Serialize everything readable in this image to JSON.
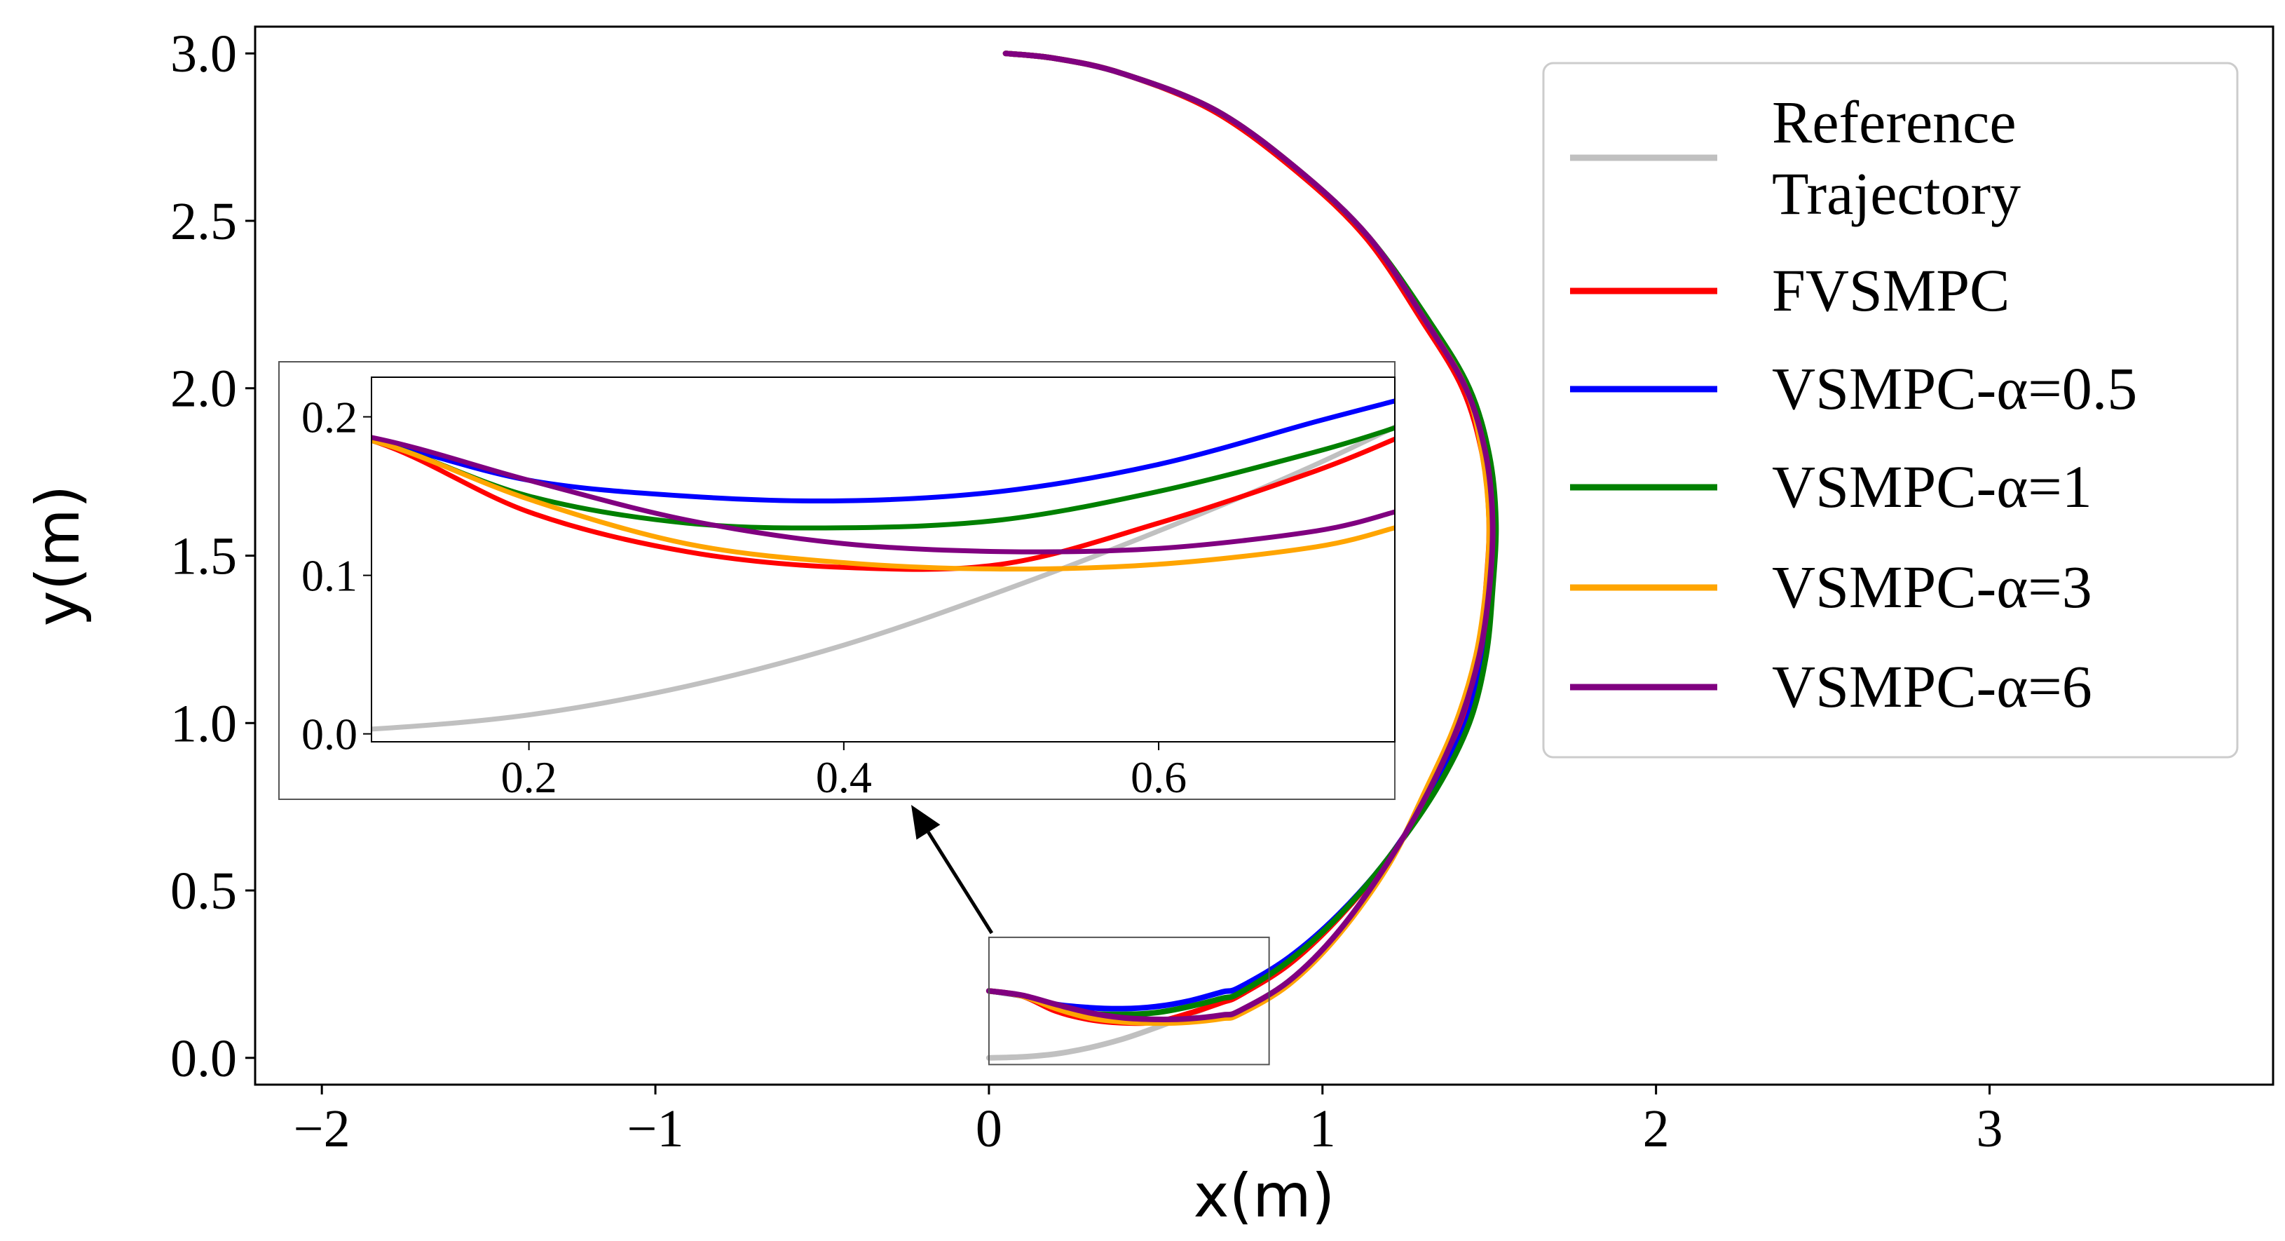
{
  "chart_data": {
    "type": "line",
    "title": "",
    "xlabel": "x(m)",
    "ylabel": "y(m)",
    "xlim": [
      -2.2,
      3.85
    ],
    "ylim": [
      -0.08,
      3.08
    ],
    "xticks": [
      -2,
      -1,
      0,
      1,
      2,
      3
    ],
    "xtick_labels": [
      "−2",
      "−1",
      "0",
      "1",
      "2",
      "3"
    ],
    "yticks": [
      0.0,
      0.5,
      1.0,
      1.5,
      2.0,
      2.5,
      3.0
    ],
    "ytick_labels": [
      "0.0",
      "0.5",
      "1.0",
      "1.5",
      "2.0",
      "2.5",
      "3.0"
    ],
    "grid": false,
    "legend_position": "top-right",
    "series": [
      {
        "name": "Reference\nTrajectory",
        "color": "#c0c0c0",
        "x": [
          0.0,
          0.1,
          0.2,
          0.3,
          0.4,
          0.5,
          0.6,
          0.7,
          0.8
        ],
        "y": [
          0.0,
          0.003,
          0.012,
          0.03,
          0.056,
          0.09,
          0.128,
          0.17,
          0.218
        ]
      },
      {
        "name": "FVSMPC",
        "color": "#ff0000",
        "x": [
          0.0,
          0.1,
          0.2,
          0.3,
          0.4,
          0.5,
          0.6,
          0.7,
          0.75,
          0.9,
          1.05,
          1.2,
          1.33,
          1.42,
          1.47,
          1.49,
          1.5,
          1.48,
          1.42,
          1.3,
          1.13,
          0.92,
          0.67,
          0.4,
          0.2,
          0.05
        ],
        "y": [
          0.2,
          0.185,
          0.14,
          0.115,
          0.105,
          0.107,
          0.133,
          0.166,
          0.186,
          0.28,
          0.42,
          0.6,
          0.8,
          1.0,
          1.2,
          1.4,
          1.6,
          1.8,
          2.0,
          2.2,
          2.45,
          2.65,
          2.83,
          2.94,
          2.985,
          3.0
        ]
      },
      {
        "name": "VSMPC-α=0.5",
        "color": "#0000ff",
        "x": [
          0.0,
          0.1,
          0.2,
          0.3,
          0.4,
          0.5,
          0.6,
          0.7,
          0.75,
          0.9,
          1.05,
          1.2,
          1.33,
          1.43,
          1.48,
          1.5,
          1.51,
          1.49,
          1.43,
          1.31,
          1.14,
          0.93,
          0.68,
          0.4,
          0.2,
          0.05
        ],
        "y": [
          0.2,
          0.185,
          0.16,
          0.15,
          0.147,
          0.153,
          0.17,
          0.197,
          0.21,
          0.3,
          0.43,
          0.6,
          0.8,
          1.0,
          1.2,
          1.4,
          1.6,
          1.8,
          2.0,
          2.2,
          2.45,
          2.65,
          2.83,
          2.94,
          2.985,
          3.0
        ]
      },
      {
        "name": "VSMPC-α=1",
        "color": "#008000",
        "x": [
          0.0,
          0.1,
          0.2,
          0.3,
          0.4,
          0.5,
          0.6,
          0.7,
          0.75,
          0.9,
          1.05,
          1.2,
          1.34,
          1.44,
          1.49,
          1.51,
          1.52,
          1.5,
          1.44,
          1.32,
          1.14,
          0.93,
          0.68,
          0.4,
          0.2,
          0.05
        ],
        "y": [
          0.2,
          0.185,
          0.15,
          0.133,
          0.13,
          0.135,
          0.153,
          0.178,
          0.193,
          0.29,
          0.425,
          0.6,
          0.8,
          1.0,
          1.2,
          1.4,
          1.6,
          1.8,
          2.0,
          2.2,
          2.45,
          2.65,
          2.83,
          2.94,
          2.985,
          3.0
        ]
      },
      {
        "name": "VSMPC-α=3",
        "color": "#ffa500",
        "x": [
          0.0,
          0.1,
          0.2,
          0.3,
          0.4,
          0.5,
          0.6,
          0.7,
          0.75,
          0.9,
          1.05,
          1.2,
          1.31,
          1.4,
          1.46,
          1.49,
          1.5,
          1.48,
          1.43,
          1.31,
          1.14,
          0.93,
          0.68,
          0.4,
          0.2,
          0.05
        ],
        "y": [
          0.2,
          0.185,
          0.148,
          0.12,
          0.108,
          0.104,
          0.107,
          0.118,
          0.13,
          0.22,
          0.37,
          0.58,
          0.8,
          1.0,
          1.2,
          1.4,
          1.6,
          1.8,
          2.0,
          2.2,
          2.45,
          2.65,
          2.83,
          2.94,
          2.985,
          3.0
        ]
      },
      {
        "name": "VSMPC-α=6",
        "color": "#800080",
        "x": [
          0.0,
          0.1,
          0.2,
          0.3,
          0.4,
          0.5,
          0.6,
          0.7,
          0.75,
          0.9,
          1.05,
          1.2,
          1.32,
          1.41,
          1.47,
          1.5,
          1.51,
          1.49,
          1.43,
          1.31,
          1.14,
          0.93,
          0.68,
          0.4,
          0.2,
          0.05
        ],
        "y": [
          0.2,
          0.187,
          0.16,
          0.135,
          0.12,
          0.115,
          0.117,
          0.128,
          0.14,
          0.23,
          0.38,
          0.59,
          0.8,
          1.0,
          1.2,
          1.4,
          1.6,
          1.8,
          2.0,
          2.2,
          2.45,
          2.65,
          2.83,
          2.94,
          2.985,
          3.0
        ]
      }
    ],
    "inset": {
      "xlim": [
        0.1,
        0.75
      ],
      "ylim": [
        -0.005,
        0.225
      ],
      "xticks": [
        0.2,
        0.4,
        0.6
      ],
      "xtick_labels": [
        "0.2",
        "0.4",
        "0.6"
      ],
      "yticks": [
        0.0,
        0.1,
        0.2
      ],
      "ytick_labels": [
        "0.0",
        "0.1",
        "0.2"
      ],
      "source_region": {
        "x": [
          0.0,
          0.84
        ],
        "y": [
          -0.02,
          0.36
        ]
      }
    }
  }
}
